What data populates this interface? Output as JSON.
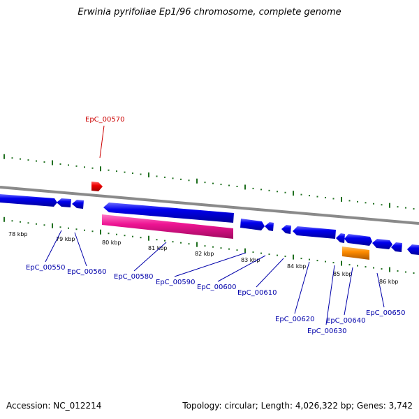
{
  "title": "Erwinia pyrifoliae Ep1/96 chromosome, complete genome",
  "footer": {
    "accession": "Accession: NC_012214",
    "summary": "Topology: circular; Length: 4,026,322 bp; Genes: 3,742"
  },
  "colors": {
    "background": "#ffffff",
    "gene_blue": "#0000ee",
    "gene_red": "#ee0000",
    "gene_pink": "#ee1493",
    "gene_orange": "#ff8c00",
    "backbone": "#8a8a8a",
    "tick_green": "#207020",
    "label_blue": "#0000aa",
    "label_red": "#cc0000"
  },
  "scale_ticks": [
    "78 kbp",
    "79 kbp",
    "80 kbp",
    "81 kbp",
    "82 kbp",
    "83 kbp",
    "84 kbp",
    "85 kbp",
    "86 kbp"
  ],
  "gene_labels": {
    "EpC_00570": "EpC_00570",
    "EpC_00550": "EpC_00550",
    "EpC_00560": "EpC_00560",
    "EpC_00580": "EpC_00580",
    "EpC_00590": "EpC_00590",
    "EpC_00600": "EpC_00600",
    "EpC_00610": "EpC_00610",
    "EpC_00620": "EpC_00620",
    "EpC_00630": "EpC_00630",
    "EpC_00640": "EpC_00640",
    "EpC_00650": "EpC_00650"
  }
}
